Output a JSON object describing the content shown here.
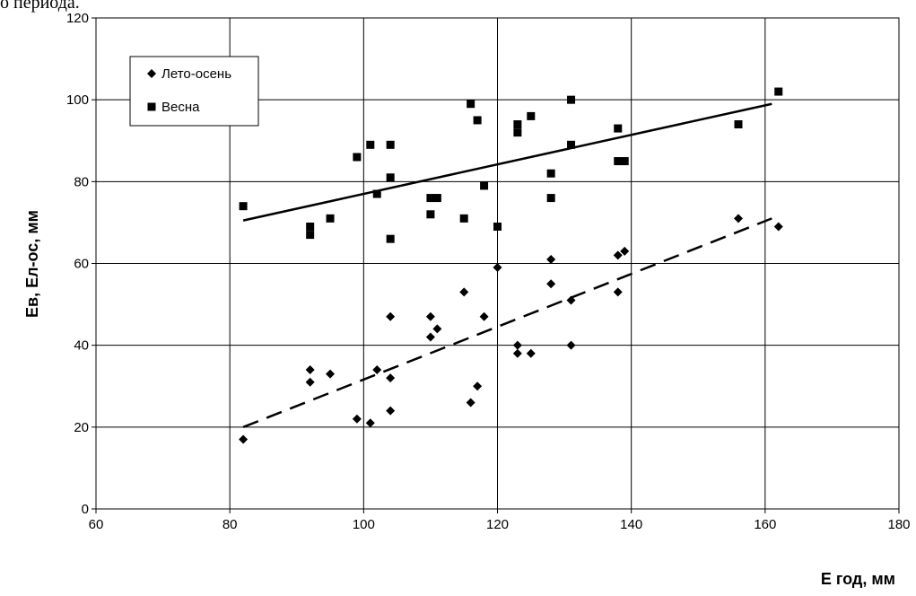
{
  "top_text": "о периода.",
  "chart_data": {
    "type": "scatter",
    "title": "",
    "xlabel": "Е год, мм",
    "ylabel": "Ев, Ел-ос, мм",
    "xlim": [
      60,
      180
    ],
    "ylim": [
      0,
      120
    ],
    "x_ticks": [
      60,
      80,
      100,
      120,
      140,
      160,
      180
    ],
    "y_ticks": [
      0,
      20,
      40,
      60,
      80,
      100,
      120
    ],
    "grid": true,
    "legend_position": "top-left",
    "series": [
      {
        "name": "Лето-осень",
        "marker": "diamond",
        "color": "#000000",
        "points": [
          [
            82,
            17
          ],
          [
            92,
            34
          ],
          [
            92,
            31
          ],
          [
            95,
            33
          ],
          [
            99,
            22
          ],
          [
            101,
            21
          ],
          [
            102,
            34
          ],
          [
            104,
            47
          ],
          [
            104,
            32
          ],
          [
            104,
            24
          ],
          [
            110,
            47
          ],
          [
            110,
            42
          ],
          [
            111,
            44
          ],
          [
            115,
            53
          ],
          [
            116,
            26
          ],
          [
            117,
            30
          ],
          [
            118,
            47
          ],
          [
            120,
            59
          ],
          [
            123,
            40
          ],
          [
            123,
            38
          ],
          [
            125,
            38
          ],
          [
            128,
            61
          ],
          [
            128,
            55
          ],
          [
            131,
            51
          ],
          [
            131,
            40
          ],
          [
            138,
            62
          ],
          [
            138,
            53
          ],
          [
            139,
            63
          ],
          [
            156,
            71
          ],
          [
            162,
            69
          ]
        ],
        "trendline": {
          "style": "dashed",
          "from": [
            82,
            20
          ],
          "to": [
            161,
            71
          ]
        }
      },
      {
        "name": "Весна",
        "marker": "square",
        "color": "#000000",
        "points": [
          [
            82,
            74
          ],
          [
            92,
            69
          ],
          [
            92,
            67
          ],
          [
            95,
            71
          ],
          [
            99,
            86
          ],
          [
            101,
            89
          ],
          [
            102,
            77
          ],
          [
            104,
            89
          ],
          [
            104,
            81
          ],
          [
            104,
            66
          ],
          [
            110,
            76
          ],
          [
            110,
            72
          ],
          [
            111,
            76
          ],
          [
            115,
            71
          ],
          [
            116,
            99
          ],
          [
            117,
            95
          ],
          [
            118,
            79
          ],
          [
            120,
            69
          ],
          [
            123,
            94
          ],
          [
            123,
            92
          ],
          [
            125,
            96
          ],
          [
            128,
            82
          ],
          [
            128,
            76
          ],
          [
            131,
            100
          ],
          [
            131,
            89
          ],
          [
            138,
            93
          ],
          [
            138,
            85
          ],
          [
            139,
            85
          ],
          [
            156,
            94
          ],
          [
            162,
            102
          ]
        ],
        "trendline": {
          "style": "solid",
          "from": [
            82,
            70.5
          ],
          "to": [
            161,
            99
          ]
        }
      }
    ]
  }
}
